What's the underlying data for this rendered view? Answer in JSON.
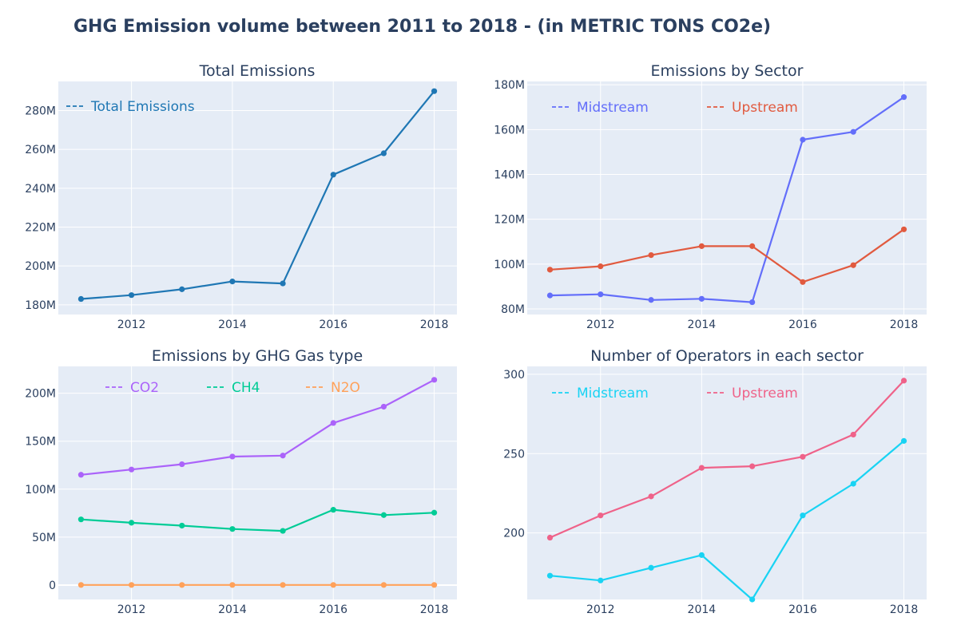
{
  "title": "GHG Emission volume between 2011 to 2018 - (in METRIC TONS CO2e)",
  "chart_data": [
    {
      "type": "line",
      "title": "Total Emissions",
      "x": [
        2011,
        2012,
        2013,
        2014,
        2015,
        2016,
        2017,
        2018
      ],
      "xticks": [
        "2012",
        "2014",
        "2016",
        "2018"
      ],
      "xlim": [
        2010.55,
        2018.45
      ],
      "ylim": [
        175000000,
        295000000
      ],
      "yticks": [
        {
          "v": 180000000,
          "label": "180M"
        },
        {
          "v": 200000000,
          "label": "200M"
        },
        {
          "v": 220000000,
          "label": "220M"
        },
        {
          "v": 240000000,
          "label": "240M"
        },
        {
          "v": 260000000,
          "label": "260M"
        },
        {
          "v": 280000000,
          "label": "280M"
        }
      ],
      "grid": true,
      "legend_position": "top-left",
      "series": [
        {
          "name": "Total Emissions",
          "color": "#1f77b4",
          "values": [
            183000000,
            185000000,
            188000000,
            192000000,
            191000000,
            247000000,
            258000000,
            290000000
          ]
        }
      ]
    },
    {
      "type": "line",
      "title": "Emissions by Sector",
      "x": [
        2011,
        2012,
        2013,
        2014,
        2015,
        2016,
        2017,
        2018
      ],
      "xticks": [
        "2012",
        "2014",
        "2016",
        "2018"
      ],
      "xlim": [
        2010.55,
        2018.45
      ],
      "ylim": [
        77500000,
        181500000
      ],
      "yticks": [
        {
          "v": 80000000,
          "label": "80M"
        },
        {
          "v": 100000000,
          "label": "100M"
        },
        {
          "v": 120000000,
          "label": "120M"
        },
        {
          "v": 140000000,
          "label": "140M"
        },
        {
          "v": 160000000,
          "label": "160M"
        },
        {
          "v": 180000000,
          "label": "180M"
        }
      ],
      "grid": true,
      "legend_position": "top",
      "series": [
        {
          "name": "Midstream",
          "color": "#636efa",
          "values": [
            86000000,
            86500000,
            84000000,
            84500000,
            83000000,
            155500000,
            159000000,
            174500000
          ]
        },
        {
          "name": "Upstream",
          "color": "#e15a3f",
          "values": [
            97500000,
            99000000,
            104000000,
            108000000,
            108000000,
            92000000,
            99500000,
            115500000
          ]
        }
      ]
    },
    {
      "type": "line",
      "title": "Emissions by GHG Gas type",
      "x": [
        2011,
        2012,
        2013,
        2014,
        2015,
        2016,
        2017,
        2018
      ],
      "xticks": [
        "2012",
        "2014",
        "2016",
        "2018"
      ],
      "xlim": [
        2010.55,
        2018.45
      ],
      "ylim": [
        -15000000,
        228000000
      ],
      "yticks": [
        {
          "v": 0,
          "label": "0"
        },
        {
          "v": 50000000,
          "label": "50M"
        },
        {
          "v": 100000000,
          "label": "100M"
        },
        {
          "v": 150000000,
          "label": "150M"
        },
        {
          "v": 200000000,
          "label": "200M"
        }
      ],
      "grid": true,
      "legend_position": "top",
      "series": [
        {
          "name": "CO2",
          "color": "#ab63fa",
          "values": [
            115000000,
            120500000,
            126000000,
            134000000,
            135000000,
            169000000,
            186000000,
            214000000
          ]
        },
        {
          "name": "CH4",
          "color": "#00cc96",
          "values": [
            68500000,
            65000000,
            62000000,
            58500000,
            56500000,
            78500000,
            73000000,
            75500000
          ]
        },
        {
          "name": "N2O",
          "color": "#ffa15a",
          "values": [
            150000,
            150000,
            150000,
            150000,
            150000,
            150000,
            150000,
            150000
          ]
        }
      ]
    },
    {
      "type": "line",
      "title": "Number of Operators in each sector",
      "x": [
        2011,
        2012,
        2013,
        2014,
        2015,
        2016,
        2017,
        2018
      ],
      "xticks": [
        "2012",
        "2014",
        "2016",
        "2018"
      ],
      "xlim": [
        2010.55,
        2018.45
      ],
      "ylim": [
        158,
        305
      ],
      "yticks": [
        {
          "v": 200,
          "label": "200"
        },
        {
          "v": 250,
          "label": "250"
        },
        {
          "v": 300,
          "label": "300"
        }
      ],
      "grid": true,
      "legend_position": "top",
      "series": [
        {
          "name": "Midstream",
          "color": "#19d3f3",
          "values": [
            173,
            170,
            178,
            186,
            158,
            211,
            231,
            258
          ]
        },
        {
          "name": "Upstream",
          "color": "#ef6289",
          "values": [
            197,
            211,
            223,
            241,
            242,
            248,
            262,
            296
          ]
        }
      ]
    }
  ]
}
